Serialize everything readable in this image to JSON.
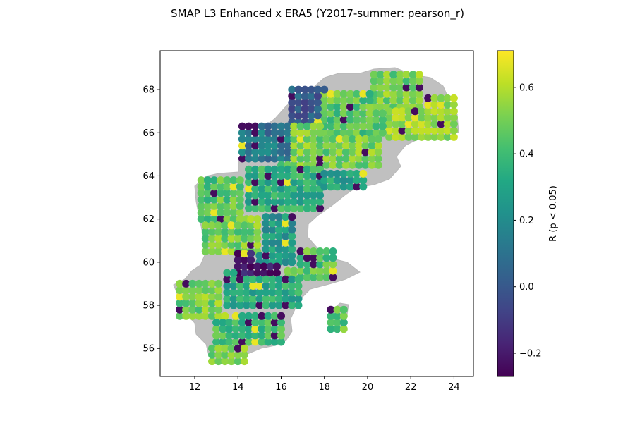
{
  "figure": {
    "title": "SMAP L3 Enhanced x ERA5 (Y2017-summer: pearson_r)"
  },
  "chart_data": {
    "type": "scatter",
    "title": "SMAP L3 Enhanced x ERA5 (Y2017-summer: pearson_r)",
    "xlabel": "",
    "ylabel": "",
    "xlim": [
      10.4,
      24.9
    ],
    "ylim": [
      54.7,
      69.8
    ],
    "x_ticks": [
      12,
      14,
      16,
      18,
      20,
      22,
      24
    ],
    "y_ticks": [
      56,
      58,
      60,
      62,
      64,
      66,
      68
    ],
    "grid": false,
    "land_color": "#c0c0c0",
    "colormap": "viridis",
    "colorbar": {
      "label": "R (p < 0.05)",
      "range": [
        -0.27,
        0.71
      ],
      "ticks": [
        -0.2,
        0.0,
        0.2,
        0.4,
        0.6
      ],
      "tick_labels": [
        "−0.2",
        "0.0",
        "0.2",
        "0.4",
        "0.6"
      ]
    },
    "regions": [
      {
        "lon": [
          20.3,
          22.5
        ],
        "lat": [
          67.2,
          68.8
        ],
        "r": 0.5
      },
      {
        "lon": [
          21.0,
          24.0
        ],
        "lat": [
          65.8,
          67.6
        ],
        "r": 0.58
      },
      {
        "lon": [
          18.0,
          21.0
        ],
        "lat": [
          66.0,
          68.0
        ],
        "r": 0.45
      },
      {
        "lon": [
          16.5,
          18.2
        ],
        "lat": [
          66.5,
          68.0
        ],
        "r": 0.02
      },
      {
        "lon": [
          14.2,
          16.5
        ],
        "lat": [
          64.8,
          66.5
        ],
        "r": 0.12
      },
      {
        "lon": [
          16.0,
          20.5
        ],
        "lat": [
          64.5,
          66.4
        ],
        "r": 0.5
      },
      {
        "lon": [
          14.5,
          18.0
        ],
        "lat": [
          62.5,
          64.5
        ],
        "r": 0.35
      },
      {
        "lon": [
          18.0,
          20.0
        ],
        "lat": [
          63.5,
          64.5
        ],
        "r": 0.3
      },
      {
        "lon": [
          12.3,
          14.5
        ],
        "lat": [
          62.0,
          63.9
        ],
        "r": 0.45
      },
      {
        "lon": [
          12.5,
          15.0
        ],
        "lat": [
          60.5,
          62.0
        ],
        "r": 0.5
      },
      {
        "lon": [
          15.0,
          16.5
        ],
        "lat": [
          60.0,
          62.5
        ],
        "r": 0.25
      },
      {
        "lon": [
          14.0,
          16.0
        ],
        "lat": [
          59.5,
          60.5
        ],
        "r": -0.22
      },
      {
        "lon": [
          16.0,
          18.5
        ],
        "lat": [
          59.3,
          60.5
        ],
        "r": 0.45
      },
      {
        "lon": [
          13.5,
          17.0
        ],
        "lat": [
          58.0,
          59.5
        ],
        "r": 0.32
      },
      {
        "lon": [
          11.3,
          13.5
        ],
        "lat": [
          57.5,
          59.0
        ],
        "r": 0.5
      },
      {
        "lon": [
          13.0,
          16.0
        ],
        "lat": [
          56.3,
          58.0
        ],
        "r": 0.4
      },
      {
        "lon": [
          12.8,
          14.5
        ],
        "lat": [
          55.4,
          56.5
        ],
        "r": 0.5
      },
      {
        "lon": [
          18.3,
          18.9
        ],
        "lat": [
          56.9,
          57.9
        ],
        "r": 0.45
      }
    ]
  }
}
